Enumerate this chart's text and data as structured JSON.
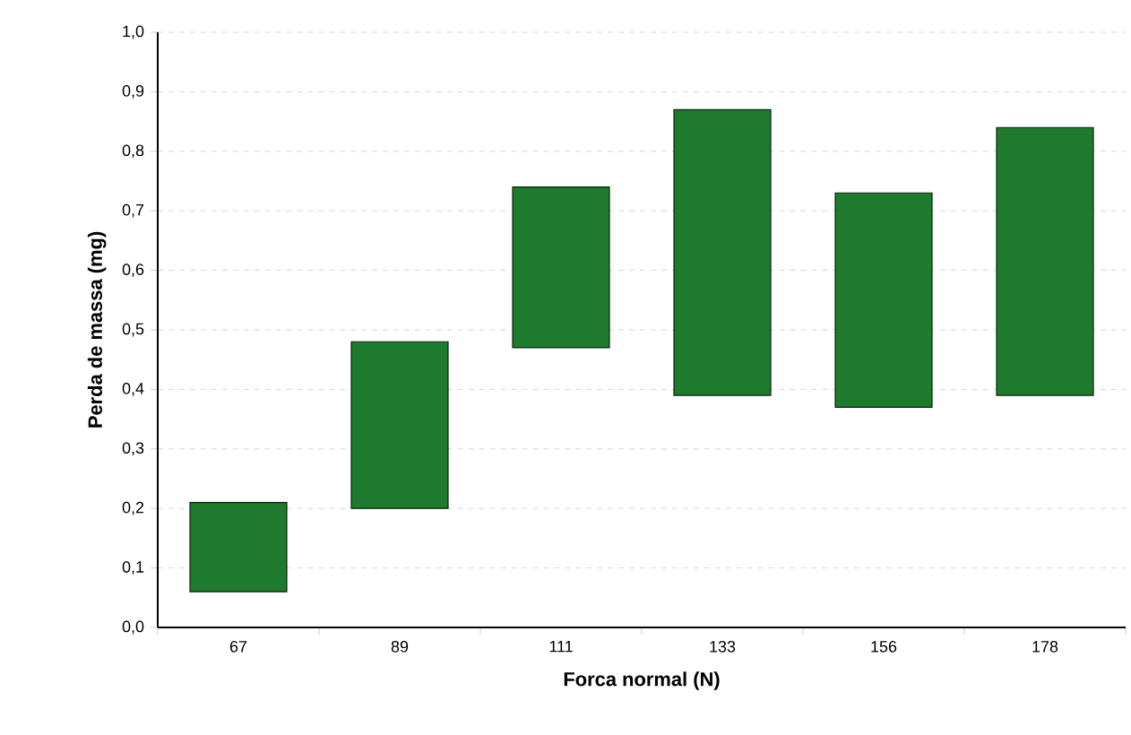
{
  "chart_data": {
    "type": "bar",
    "xlabel": "Forca normal (N)",
    "ylabel": "Perda de massa (mg)",
    "categories": [
      "67",
      "89",
      "111",
      "133",
      "156",
      "178"
    ],
    "base": [
      0.06,
      0.2,
      0.47,
      0.39,
      0.37,
      0.39
    ],
    "values": [
      0.15,
      0.28,
      0.27,
      0.48,
      0.36,
      0.45
    ],
    "color": "#1e7b2e",
    "ylim": [
      0,
      1
    ],
    "yticks": [
      {
        "value": 0,
        "label": "0,0"
      },
      {
        "value": 0.1,
        "label": "0,1"
      },
      {
        "value": 0.2,
        "label": "0,2"
      },
      {
        "value": 0.3,
        "label": "0,3"
      },
      {
        "value": 0.4,
        "label": "0,4"
      },
      {
        "value": 0.5,
        "label": "0,5"
      },
      {
        "value": 0.6,
        "label": "0,6"
      },
      {
        "value": 0.7,
        "label": "0,7"
      },
      {
        "value": 0.8,
        "label": "0,8"
      },
      {
        "value": 0.9,
        "label": "0,9"
      },
      {
        "value": 1,
        "label": "1,0"
      }
    ],
    "grid": "y"
  }
}
